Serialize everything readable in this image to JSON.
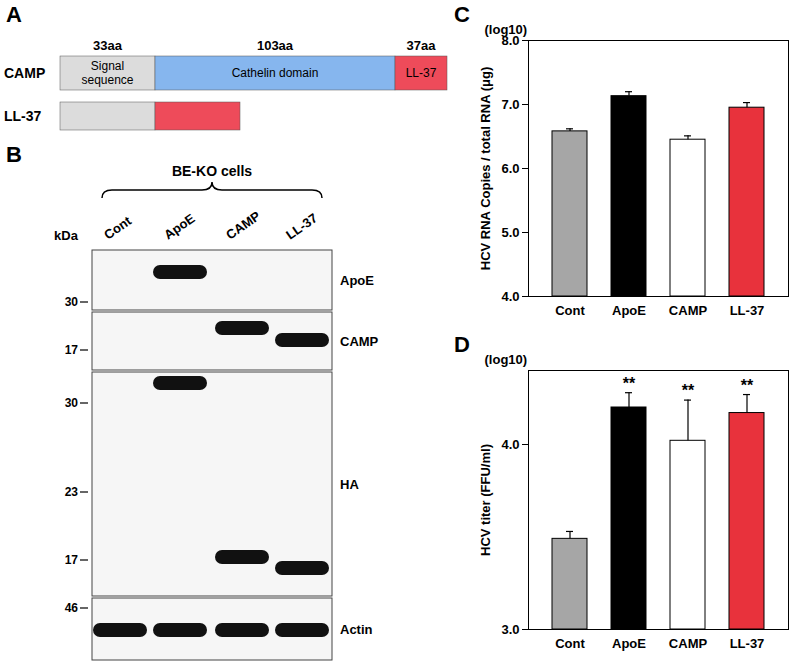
{
  "diagram": {
    "title": "A",
    "rows": [
      {
        "label": "CAMP",
        "segments": [
          {
            "length_label": "33aa",
            "name": "Signal sequence",
            "color": "#dcdcdc"
          },
          {
            "length_label": "103aa",
            "name": "Cathelin domain",
            "color": "#86b6ee"
          },
          {
            "length_label": "37aa",
            "name": "LL-37",
            "color": "#ee4b5a"
          }
        ]
      },
      {
        "label": "LL-37",
        "segments": [
          {
            "color": "#dcdcdc"
          },
          {
            "color": "#ee4b5a"
          }
        ]
      }
    ]
  },
  "blot": {
    "title": "B",
    "header": "BE-KO cells",
    "unit": "kDa",
    "lanes": [
      "Cont",
      "ApoE",
      "CAMP",
      "LL-37"
    ],
    "rows": [
      {
        "label": "ApoE",
        "markers": [
          30
        ],
        "bands": [
          "ApoE"
        ]
      },
      {
        "label": "CAMP",
        "markers": [
          17
        ],
        "bands": [
          "CAMP",
          "LL-37"
        ]
      },
      {
        "label": "HA",
        "markers": [
          30,
          23,
          17
        ],
        "bands": [
          "ApoE",
          "CAMP",
          "LL-37"
        ]
      },
      {
        "label": "Actin",
        "markers": [
          46
        ],
        "bands": [
          "Cont",
          "ApoE",
          "CAMP",
          "LL-37"
        ]
      }
    ]
  },
  "chart_data": [
    {
      "type": "bar",
      "title": "C",
      "y_label": "HCV RNA Copies / total RNA (μg)",
      "y_label_note": "(log10)",
      "categories": [
        "Cont",
        "ApoE",
        "CAMP",
        "LL-37"
      ],
      "values": [
        6.58,
        7.13,
        6.45,
        6.95
      ],
      "errors": [
        0.04,
        0.07,
        0.06,
        0.08
      ],
      "colors": [
        "#a6a6a6",
        "#000000",
        "#ffffff",
        "#e8323c"
      ],
      "ylim": [
        4,
        8
      ],
      "yticks": [
        4,
        5,
        6,
        7,
        8
      ],
      "grid": false
    },
    {
      "type": "bar",
      "title": "D",
      "y_label": "HCV titer (FFU/ml)",
      "y_label_note": "(log10)",
      "categories": [
        "Cont",
        "ApoE",
        "CAMP",
        "LL-37"
      ],
      "values": [
        3.49,
        4.2,
        4.02,
        4.17
      ],
      "errors": [
        0.04,
        0.08,
        0.22,
        0.1
      ],
      "annotations": [
        null,
        "**",
        "**",
        "**"
      ],
      "colors": [
        "#a6a6a6",
        "#000000",
        "#ffffff",
        "#e8323c"
      ],
      "ylim": [
        3,
        4.4
      ],
      "yticks": [
        3,
        4
      ],
      "grid": false
    }
  ]
}
